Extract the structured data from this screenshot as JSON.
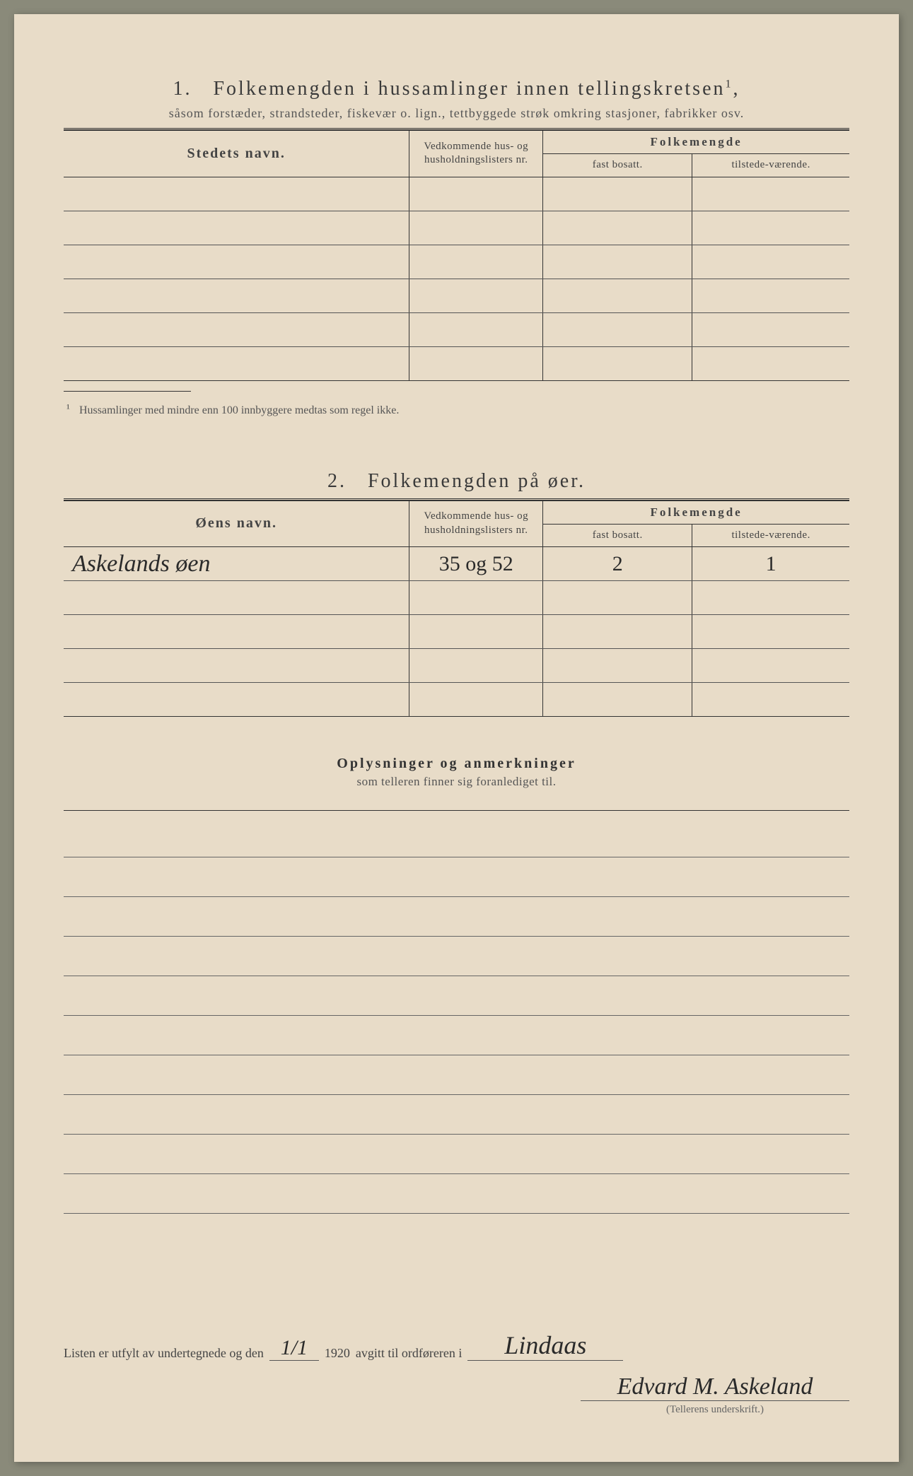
{
  "section1": {
    "number": "1.",
    "title": "Folkemengden i hussamlinger innen tellingskretsen",
    "title_sup": "1",
    "subtitle": "såsom forstæder, strandsteder, fiskevær o. lign., tettbyggede strøk omkring stasjoner, fabrikker osv.",
    "col_stedets": "Stedets navn.",
    "col_vedk": "Vedkommende hus- og husholdningslisters nr.",
    "col_folkemengde": "Folkemengde",
    "col_fast": "fast bosatt.",
    "col_tilstede": "tilstede-værende.",
    "footnote": "Hussamlinger med mindre enn 100 innbyggere medtas som regel ikke.",
    "row_count": 6
  },
  "section2": {
    "number": "2.",
    "title": "Folkemengden på øer.",
    "col_oens": "Øens navn.",
    "col_vedk": "Vedkommende hus- og husholdningslisters nr.",
    "col_folkemengde": "Folkemengde",
    "col_fast": "fast bosatt.",
    "col_tilstede": "tilstede-værende.",
    "rows": [
      {
        "name": "Askelands øen",
        "nr": "35 og 52",
        "fast": "2",
        "tilstede": "1"
      },
      {
        "name": "",
        "nr": "",
        "fast": "",
        "tilstede": ""
      },
      {
        "name": "",
        "nr": "",
        "fast": "",
        "tilstede": ""
      },
      {
        "name": "",
        "nr": "",
        "fast": "",
        "tilstede": ""
      },
      {
        "name": "",
        "nr": "",
        "fast": "",
        "tilstede": ""
      }
    ]
  },
  "oplysninger": {
    "title": "Oplysninger og anmerkninger",
    "subtitle": "som telleren finner sig foranlediget til.",
    "blank_line_count": 10
  },
  "signature": {
    "line_prefix": "Listen er utfylt av undertegnede og den",
    "date_value": "1/1",
    "year": "1920",
    "line_middle": "avgitt til ordføreren i",
    "place_value": "Lindaas",
    "signer": "Edvard M. Askeland",
    "caption": "(Tellerens underskrift.)"
  },
  "colors": {
    "paper": "#e8dcc8",
    "ink": "#333333",
    "faded_ink": "#555555",
    "handwriting": "#2a2a2a"
  }
}
